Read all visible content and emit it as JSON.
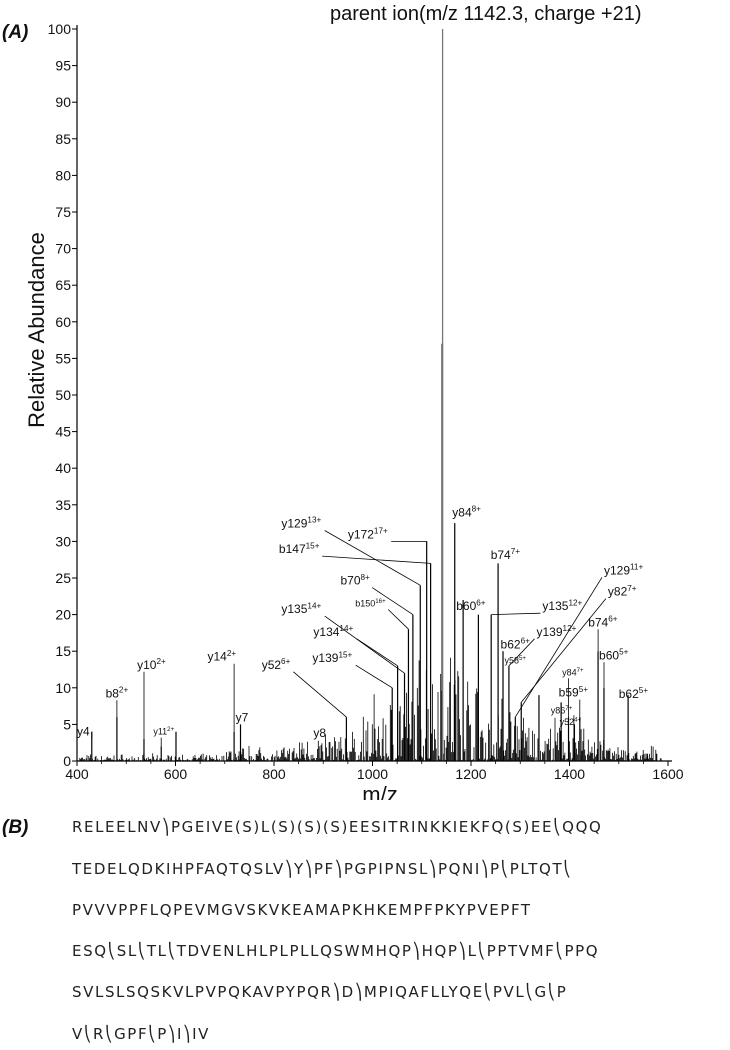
{
  "panels": {
    "a": "(A)",
    "b": "(B)"
  },
  "chart_data": {
    "type": "bar",
    "title": "parent ion(m/z 1142.3, charge +21)",
    "xlabel": "m/z",
    "ylabel": "Relative Abundance",
    "xlim": [
      400,
      1600
    ],
    "ylim": [
      0,
      100
    ],
    "xticks": [
      400,
      600,
      800,
      1000,
      1200,
      1400,
      1600
    ],
    "yticks": [
      0,
      5,
      10,
      15,
      20,
      25,
      30,
      35,
      40,
      45,
      50,
      55,
      60,
      65,
      70,
      75,
      80,
      85,
      90,
      95,
      100
    ],
    "grid": false,
    "parent_peak": {
      "mz": 1142.3,
      "intensity": 100
    },
    "second_peak": {
      "mz": 1141.7,
      "intensity": 57
    },
    "peaks": [
      {
        "mz": 430,
        "y": 4
      },
      {
        "mz": 481,
        "y": 6
      },
      {
        "mz": 536,
        "y": 3
      },
      {
        "mz": 571,
        "y": 2
      },
      {
        "mz": 601,
        "y": 4
      },
      {
        "mz": 719,
        "y": 4
      },
      {
        "mz": 732,
        "y": 5
      },
      {
        "mz": 947,
        "y": 6
      },
      {
        "mz": 1040,
        "y": 10
      },
      {
        "mz": 1051,
        "y": 13
      },
      {
        "mz": 1065,
        "y": 12
      },
      {
        "mz": 1073,
        "y": 18
      },
      {
        "mz": 1082,
        "y": 20
      },
      {
        "mz": 1097,
        "y": 24
      },
      {
        "mz": 1110,
        "y": 30
      },
      {
        "mz": 1118,
        "y": 27
      },
      {
        "mz": 1167,
        "y": 32.5
      },
      {
        "mz": 1184,
        "y": 22
      },
      {
        "mz": 1215,
        "y": 20
      },
      {
        "mz": 1241,
        "y": 20
      },
      {
        "mz": 1255,
        "y": 27
      },
      {
        "mz": 1265,
        "y": 15
      },
      {
        "mz": 1277,
        "y": 13
      },
      {
        "mz": 1290,
        "y": 6
      },
      {
        "mz": 1302,
        "y": 8
      },
      {
        "mz": 1338,
        "y": 9
      },
      {
        "mz": 1383,
        "y": 8
      },
      {
        "mz": 1398,
        "y": 6
      },
      {
        "mz": 1410,
        "y": 5
      },
      {
        "mz": 1421,
        "y": 6
      },
      {
        "mz": 1458,
        "y": 15
      },
      {
        "mz": 1470,
        "y": 10
      },
      {
        "mz": 1519,
        "y": 9
      },
      {
        "mz": 1558,
        "y": 1
      },
      {
        "mz": 1577,
        "y": 1
      }
    ],
    "annotations": [
      {
        "base": "y4",
        "sup": "",
        "mz": 430,
        "y": 4,
        "lx": 400,
        "ly": 3.5,
        "small": false
      },
      {
        "base": "b8",
        "sup": "2+",
        "mz": 481,
        "y": 6,
        "lx": 458,
        "ly": 8.7,
        "small": false
      },
      {
        "base": "y10",
        "sup": "2+",
        "mz": 536,
        "y": 3,
        "lx": 522,
        "ly": 12.6,
        "small": false
      },
      {
        "base": "y11",
        "sup": "2+",
        "mz": 571,
        "y": 2,
        "lx": 555,
        "ly": 3.6,
        "small": true
      },
      {
        "base": "y14",
        "sup": "2+",
        "mz": 719,
        "y": 4,
        "lx": 665,
        "ly": 13.7,
        "small": false
      },
      {
        "base": "y7",
        "sup": "",
        "mz": 732,
        "y": 5,
        "lx": 722,
        "ly": 5.4,
        "small": false
      },
      {
        "base": "y52",
        "sup": "6+",
        "mz": 947,
        "y": 6,
        "lx": 775,
        "ly": 12.6,
        "small": false
      },
      {
        "base": "y8",
        "sup": "",
        "mz": 891,
        "y": 3,
        "lx": 880,
        "ly": 3.3,
        "small": false
      },
      {
        "base": "y129",
        "sup": "13+",
        "mz": 1097,
        "y": 24,
        "lx": 815,
        "ly": 31.9,
        "small": false
      },
      {
        "base": "b147",
        "sup": "15+",
        "mz": 1118,
        "y": 27,
        "lx": 810,
        "ly": 28.4,
        "small": false
      },
      {
        "base": "y172",
        "sup": "17+",
        "mz": 1110,
        "y": 30,
        "lx": 950,
        "ly": 30.4,
        "small": false
      },
      {
        "base": "b70",
        "sup": "8+",
        "mz": 1082,
        "y": 20,
        "lx": 935,
        "ly": 24.1,
        "small": false
      },
      {
        "base": "b150",
        "sup": "16+",
        "mz": 1073,
        "y": 18,
        "lx": 965,
        "ly": 21.1,
        "small": true
      },
      {
        "base": "y135",
        "sup": "14+",
        "mz": 1065,
        "y": 12,
        "lx": 815,
        "ly": 20.2,
        "small": false
      },
      {
        "base": "y134",
        "sup": "14+",
        "mz": 1051,
        "y": 13,
        "lx": 880,
        "ly": 17.1,
        "small": false
      },
      {
        "base": "y139",
        "sup": "15+",
        "mz": 1040,
        "y": 10,
        "lx": 878,
        "ly": 13.5,
        "small": false
      },
      {
        "base": "y84",
        "sup": "8+",
        "mz": 1167,
        "y": 32.5,
        "lx": 1162,
        "ly": 33.4,
        "small": false
      },
      {
        "base": "b74",
        "sup": "7+",
        "mz": 1255,
        "y": 27,
        "lx": 1240,
        "ly": 27.6,
        "small": false
      },
      {
        "base": "b60",
        "sup": "6+",
        "mz": 1215,
        "y": 20,
        "lx": 1170,
        "ly": 20.6,
        "small": false
      },
      {
        "base": "y135",
        "sup": "12+",
        "mz": 1241,
        "y": 20,
        "lx": 1345,
        "ly": 20.6,
        "small": false
      },
      {
        "base": "y139",
        "sup": "12+",
        "mz": 1277,
        "y": 13,
        "lx": 1333,
        "ly": 17.1,
        "small": false
      },
      {
        "base": "b62",
        "sup": "6+",
        "mz": 1265,
        "y": 15,
        "lx": 1260,
        "ly": 15.4,
        "small": false
      },
      {
        "base": "y58",
        "sup": "5+",
        "mz": 1277,
        "y": 13,
        "lx": 1268,
        "ly": 13.3,
        "small": true
      },
      {
        "base": "y129",
        "sup": "11+",
        "mz": 1290,
        "y": 6,
        "lx": 1470,
        "ly": 25.5,
        "small": false
      },
      {
        "base": "y82",
        "sup": "7+",
        "mz": 1302,
        "y": 8,
        "lx": 1478,
        "ly": 22.6,
        "small": false
      },
      {
        "base": "b74",
        "sup": "6+",
        "mz": 1458,
        "y": 15,
        "lx": 1438,
        "ly": 18.4,
        "small": false
      },
      {
        "base": "b60",
        "sup": "5+",
        "mz": 1470,
        "y": 10,
        "lx": 1460,
        "ly": 13.9,
        "small": false
      },
      {
        "base": "y84",
        "sup": "7+",
        "mz": 1398,
        "y": 6,
        "lx": 1385,
        "ly": 11.7,
        "small": true
      },
      {
        "base": "b59",
        "sup": "5+",
        "mz": 1421,
        "y": 6,
        "lx": 1378,
        "ly": 8.8,
        "small": false
      },
      {
        "base": "y86",
        "sup": "7+",
        "mz": 1383,
        "y": 8,
        "lx": 1362,
        "ly": 6.5,
        "small": true
      },
      {
        "base": "y52",
        "sup": "4+",
        "mz": 1410,
        "y": 5,
        "lx": 1380,
        "ly": 4.9,
        "small": true
      },
      {
        "base": "b62",
        "sup": "5+",
        "mz": 1519,
        "y": 9,
        "lx": 1500,
        "ly": 8.6,
        "small": false
      }
    ]
  },
  "sequence_lines": [
    "RELEELNV⎞PGEIVE(S)L(S)(S)(S)EESITRINKKIEKFQ(S)EE⎝QQQ",
    "TEDELQDKIHPFAQTQSLV⎞Y⎞PF⎞PGPIPNSL⎞PQNI⎞P⎝PLTQT⎝",
    "PVVVPPFLQPEVMGVSKVKEAMAPKHKEMPFPKYPVEPFT",
    "ESQ⎝SL⎝TL⎝TDVENLHLPLPLLQSWMHQP⎞HQP⎞L⎝PPTVMF⎝PPQ",
    "SVLSLSQSKVLPVPQKAVPYPQR⎞D⎞MPIQAFLLYQE⎝PVL⎝G⎝P",
    "V⎝R⎝GPF⎝P⎞I⎞IV"
  ]
}
